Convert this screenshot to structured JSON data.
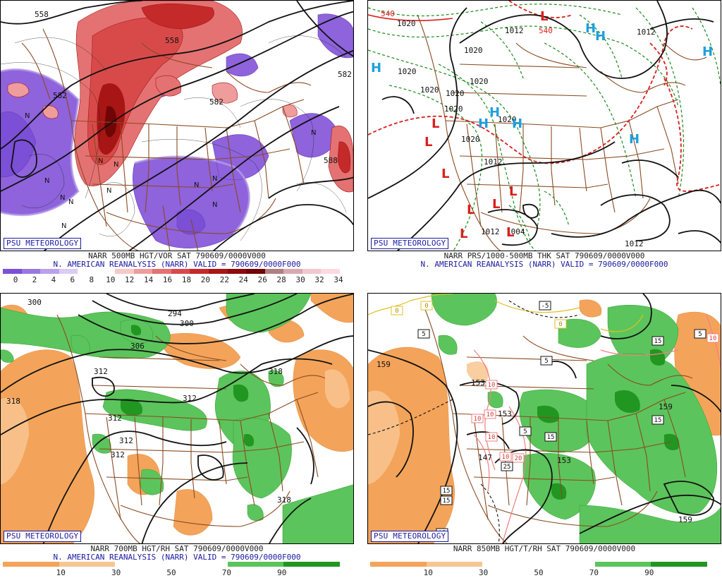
{
  "branding": "PSU METEOROLOGY",
  "panels": [
    {
      "id": "vorticity",
      "caption_line1": "NARR 500MB HGT/VOR SAT 790609/0000V000",
      "caption_line2": "N. AMERICAN REANALYSIS (NARR) VALID = 790609/0000F000",
      "colorbar": {
        "ticks": [
          "0",
          "2",
          "4",
          "6",
          "8",
          "10",
          "12",
          "14",
          "16",
          "18",
          "20",
          "22",
          "24",
          "26",
          "28",
          "30",
          "32",
          "34"
        ],
        "colors": [
          "#7b4fd6",
          "#9a77e0",
          "#b9a2ea",
          "#d9cdf4",
          "#ffffff",
          "#ffffff",
          "#f6c8c8",
          "#ef9c9c",
          "#e47272",
          "#d84a4a",
          "#c42a2a",
          "#a81515",
          "#8c0a0a",
          "#700505",
          "#b08080",
          "#d8a8b0",
          "#f0c8d0",
          "#ffd8e0"
        ]
      },
      "contour_labels": [
        "558",
        "558",
        "582",
        "582",
        "588",
        "582"
      ],
      "symbols": [
        "N",
        "N",
        "N",
        "N",
        "N",
        "N",
        "N",
        "N",
        "N",
        "N",
        "N",
        "N"
      ]
    },
    {
      "id": "pressure",
      "caption_line1": "NARR PRS/1000-500MB THK SAT 790609/0000V000",
      "caption_line2": "N. AMERICAN REANALYSIS (NARR) VALID = 790609/0000F000",
      "contour_labels": [
        "1020",
        "1012",
        "1012",
        "1020",
        "1020",
        "1020",
        "1020",
        "1020",
        "1020",
        "1020",
        "1020",
        "1012",
        "1012",
        "1004",
        "1012",
        "540",
        "540"
      ],
      "highs": [
        "H",
        "H",
        "H",
        "H",
        "H",
        "H",
        "H",
        "H"
      ],
      "lows": [
        "L",
        "L",
        "L",
        "L",
        "L",
        "L",
        "L",
        "L",
        "L"
      ],
      "colors": {
        "high": "#1f9fe0",
        "low": "#d8201c",
        "thickness": "#d8201c",
        "isobar": "#111111",
        "dashed": "#1a8a1a"
      }
    },
    {
      "id": "rh700",
      "caption_line1": "NARR 700MB HGT/RH SAT 790609/0000V000",
      "caption_line2": "N. AMERICAN REANALYSIS (NARR) VALID = 790609/0000F000",
      "colorbar": {
        "ticks": [
          "10",
          "30",
          "50",
          "70",
          "90"
        ],
        "colors": [
          "#f3a45a",
          "#f8c690",
          "#ffffff",
          "#ffffff",
          "#5cc45c",
          "#219621"
        ]
      },
      "contour_labels": [
        "300",
        "294",
        "300",
        "306",
        "312",
        "318",
        "312",
        "312",
        "312",
        "312",
        "318"
      ]
    },
    {
      "id": "rh850",
      "caption_line1": "NARR 850MB HGT/T/RH SAT 790609/0000V000",
      "caption_line2": "",
      "colorbar": {
        "ticks": [
          "10",
          "30",
          "50",
          "70",
          "90"
        ],
        "colors": [
          "#f3a45a",
          "#f8c690",
          "#ffffff",
          "#ffffff",
          "#5cc45c",
          "#219621"
        ]
      },
      "contour_labels": [
        "159",
        "153",
        "153",
        "153",
        "159",
        "147",
        "159",
        "159"
      ],
      "box_labels": [
        "0",
        "0",
        "5",
        "5",
        "-5",
        "0",
        "5",
        "15",
        "10",
        "10",
        "10",
        "10",
        "10",
        "20",
        "25",
        "15",
        "15",
        "5",
        "15",
        "15",
        "15",
        "10"
      ]
    }
  ]
}
